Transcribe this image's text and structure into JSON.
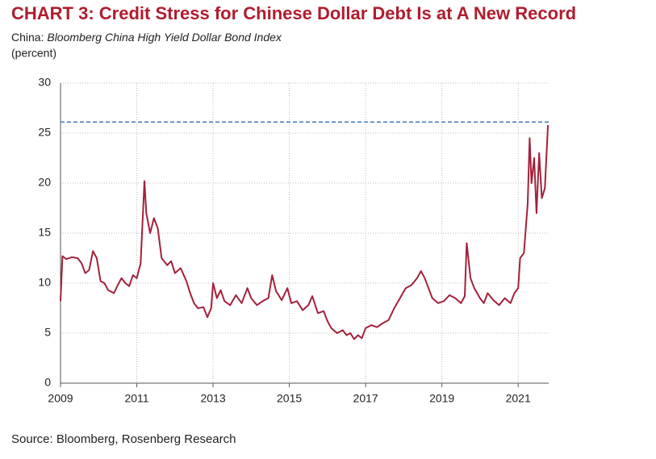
{
  "chart_data": {
    "type": "line",
    "title": "CHART 3: Credit Stress for Chinese Dollar Debt Is at A New Record",
    "subtitle_region": "China:",
    "subtitle_index": "Bloomberg China High Yield Dollar Bond Index",
    "y_label": "(percent)",
    "source": "Source: Bloomberg, Rosenberg Research",
    "x": [
      2009.0,
      2009.05,
      2009.15,
      2009.3,
      2009.45,
      2009.55,
      2009.65,
      2009.75,
      2009.85,
      2009.95,
      2010.05,
      2010.15,
      2010.25,
      2010.4,
      2010.5,
      2010.6,
      2010.7,
      2010.8,
      2010.9,
      2011.0,
      2011.1,
      2011.2,
      2011.25,
      2011.35,
      2011.45,
      2011.55,
      2011.65,
      2011.8,
      2011.9,
      2012.0,
      2012.15,
      2012.3,
      2012.4,
      2012.5,
      2012.6,
      2012.75,
      2012.85,
      2012.95,
      2013.0,
      2013.1,
      2013.2,
      2013.3,
      2013.45,
      2013.6,
      2013.75,
      2013.9,
      2014.0,
      2014.15,
      2014.3,
      2014.45,
      2014.55,
      2014.65,
      2014.8,
      2014.95,
      2015.05,
      2015.2,
      2015.35,
      2015.5,
      2015.6,
      2015.75,
      2015.9,
      2016.0,
      2016.1,
      2016.25,
      2016.4,
      2016.5,
      2016.6,
      2016.7,
      2016.8,
      2016.9,
      2017.0,
      2017.15,
      2017.3,
      2017.45,
      2017.6,
      2017.75,
      2017.9,
      2018.05,
      2018.2,
      2018.35,
      2018.45,
      2018.55,
      2018.65,
      2018.75,
      2018.9,
      2019.05,
      2019.2,
      2019.35,
      2019.5,
      2019.6,
      2019.65,
      2019.75,
      2019.85,
      2020.0,
      2020.1,
      2020.2,
      2020.35,
      2020.5,
      2020.65,
      2020.8,
      2020.9,
      2021.0,
      2021.05,
      2021.15,
      2021.25,
      2021.3,
      2021.35,
      2021.42,
      2021.48,
      2021.55,
      2021.62,
      2021.7,
      2021.78
    ],
    "series": [
      {
        "name": "Bloomberg China High Yield Dollar Bond Index",
        "color": "#a3213a",
        "values": [
          8.2,
          12.7,
          12.4,
          12.6,
          12.5,
          12.0,
          11.0,
          11.3,
          13.2,
          12.5,
          10.2,
          10.0,
          9.3,
          9.0,
          9.8,
          10.5,
          10.0,
          9.7,
          10.8,
          10.5,
          12.0,
          20.2,
          17.0,
          15.0,
          16.5,
          15.5,
          12.5,
          11.8,
          12.2,
          11.0,
          11.5,
          10.2,
          9.0,
          8.0,
          7.5,
          7.6,
          6.6,
          7.5,
          10.0,
          8.5,
          9.3,
          8.2,
          7.8,
          8.8,
          8.0,
          9.5,
          8.5,
          7.8,
          8.2,
          8.5,
          10.8,
          9.2,
          8.3,
          9.5,
          8.0,
          8.2,
          7.3,
          7.8,
          8.7,
          7.0,
          7.2,
          6.2,
          5.5,
          5.0,
          5.3,
          4.8,
          5.0,
          4.4,
          4.8,
          4.5,
          5.5,
          5.8,
          5.6,
          6.0,
          6.3,
          7.5,
          8.5,
          9.5,
          9.8,
          10.5,
          11.2,
          10.5,
          9.5,
          8.5,
          8.0,
          8.2,
          8.8,
          8.5,
          8.0,
          8.7,
          14.0,
          10.5,
          9.5,
          8.5,
          8.0,
          9.0,
          8.3,
          7.8,
          8.5,
          8.0,
          9.0,
          9.5,
          12.5,
          13.0,
          18.0,
          24.5,
          20.0,
          22.5,
          17.0,
          23.0,
          18.5,
          19.5,
          25.8
        ]
      }
    ],
    "reference_line": 26.1,
    "reference_color": "#4a7dbf",
    "xlim": [
      2009,
      2021.8
    ],
    "xticks": [
      2009,
      2011,
      2013,
      2015,
      2017,
      2019,
      2021
    ],
    "ylim": [
      0,
      30
    ],
    "yticks": [
      0,
      5,
      10,
      15,
      20,
      25,
      30
    ],
    "grid": true
  }
}
